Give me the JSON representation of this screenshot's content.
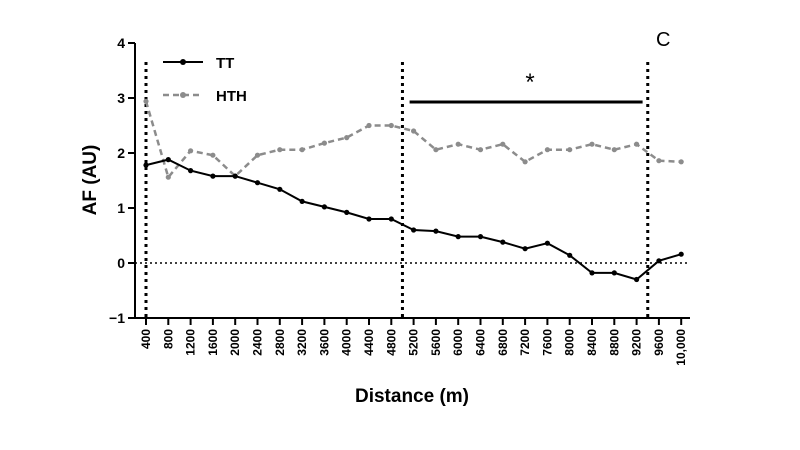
{
  "chart_data": {
    "type": "line",
    "panel_label": "C",
    "xlabel": "Distance (m)",
    "ylabel": "AF (AU)",
    "ylim": [
      -1,
      4
    ],
    "yticks": [
      -1,
      0,
      1,
      2,
      3,
      4
    ],
    "ytick_labels": [
      "−1",
      "0",
      "1",
      "2",
      "3",
      "4"
    ],
    "x": [
      400,
      800,
      1200,
      1600,
      2000,
      2400,
      2800,
      3200,
      3600,
      4000,
      4400,
      4800,
      5200,
      5600,
      6000,
      6400,
      6800,
      7200,
      7600,
      8000,
      8400,
      8800,
      9200,
      9600,
      10000
    ],
    "xtick_labels": [
      "400",
      "800",
      "1200",
      "1600",
      "2000",
      "2400",
      "2800",
      "3200",
      "3600",
      "4000",
      "4400",
      "4800",
      "5200",
      "5600",
      "6000",
      "6400",
      "6800",
      "7200",
      "7600",
      "8000",
      "8400",
      "8800",
      "9200",
      "9600",
      "10,000"
    ],
    "series": [
      {
        "name": "TT",
        "style": "solid",
        "color": "#000000",
        "values": [
          1.78,
          1.88,
          1.68,
          1.58,
          1.58,
          1.46,
          1.34,
          1.12,
          1.02,
          0.92,
          0.8,
          0.8,
          0.6,
          0.58,
          0.48,
          0.48,
          0.38,
          0.26,
          0.36,
          0.14,
          -0.18,
          -0.18,
          -0.3,
          0.04,
          0.16
        ]
      },
      {
        "name": "HTH",
        "style": "dashed",
        "color": "#8c8c8c",
        "values": [
          2.94,
          1.56,
          2.04,
          1.96,
          1.58,
          1.96,
          2.06,
          2.06,
          2.18,
          2.28,
          2.5,
          2.5,
          2.4,
          2.06,
          2.16,
          2.06,
          2.16,
          1.84,
          2.06,
          2.06,
          2.16,
          2.06,
          2.16,
          1.86,
          1.84
        ]
      }
    ],
    "reference_line": {
      "y": 0,
      "style": "dotted"
    },
    "vertical_markers": [
      400,
      5000,
      9400
    ],
    "significance": {
      "symbol": "*",
      "from": 5200,
      "to": 9200
    },
    "legend": "top-left",
    "grid": false
  }
}
